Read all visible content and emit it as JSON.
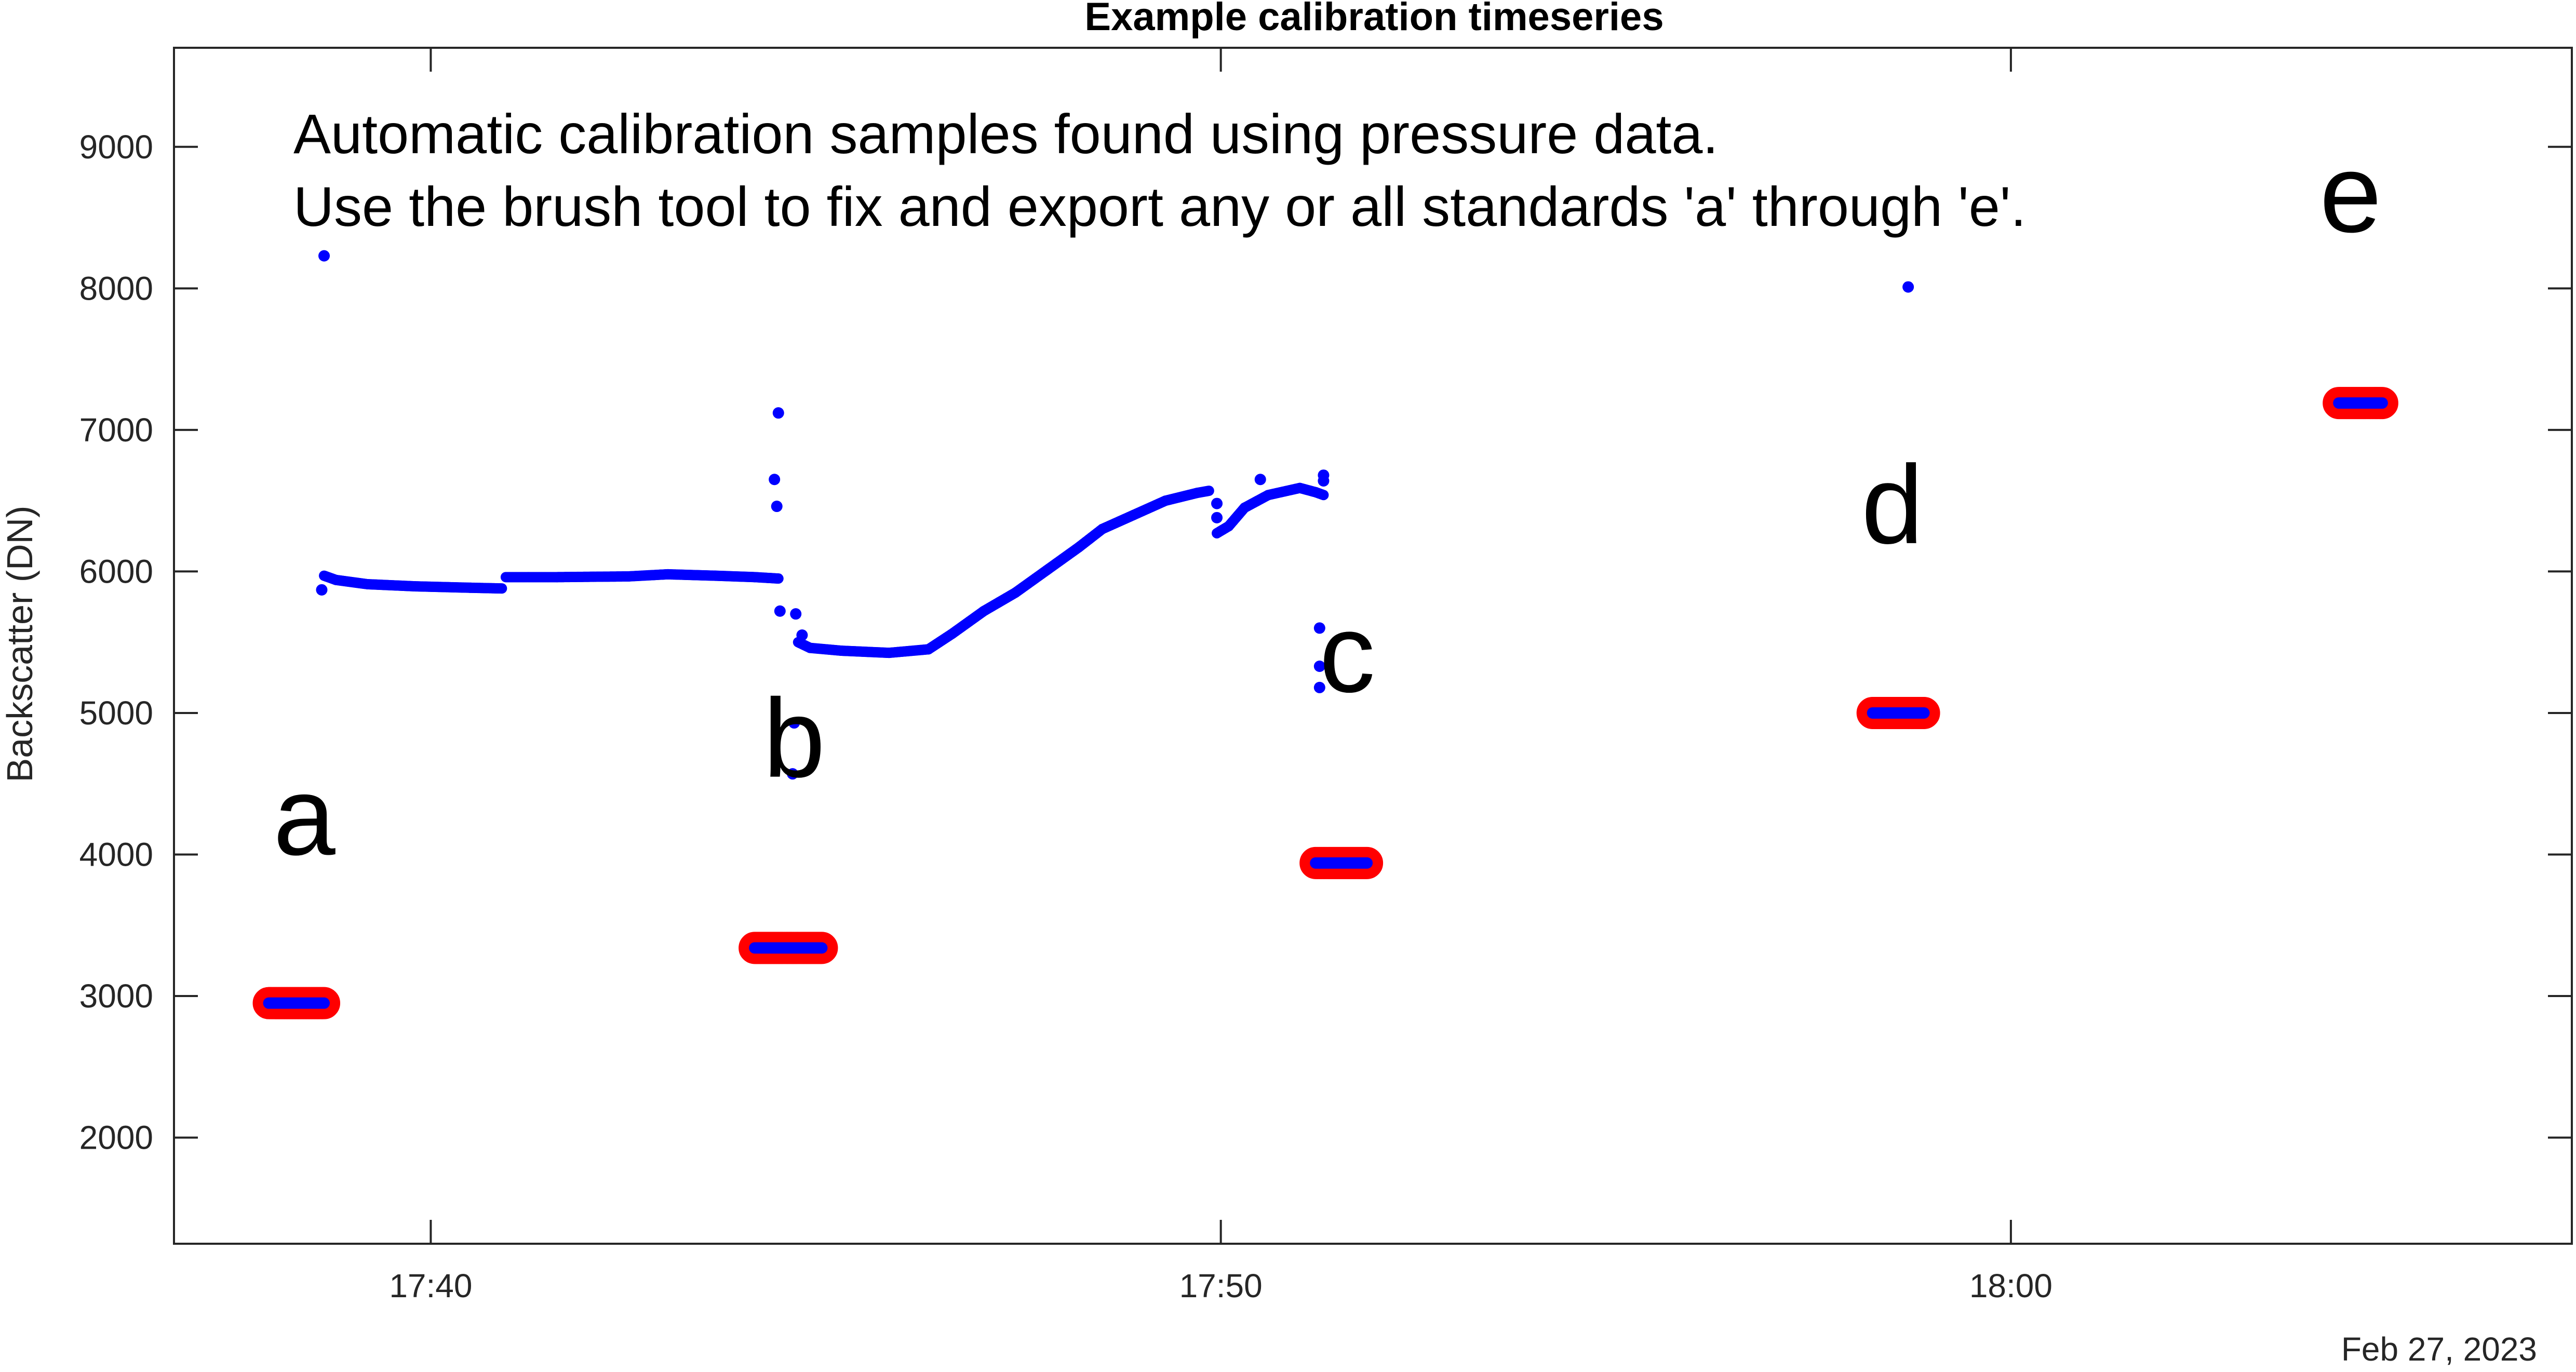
{
  "chart_data": {
    "type": "scatter",
    "title": "Example calibration timeseries",
    "xlabel": "",
    "ylabel": "Backscatter (DN)",
    "x_date_label": "Feb 27, 2023",
    "xlim": [
      "17:36:45",
      "17:67:05"
    ],
    "xlim_minutes_after_17": [
      36.75,
      67.1
    ],
    "ylim": [
      1250,
      9700
    ],
    "yticks": [
      2000,
      3000,
      4000,
      5000,
      6000,
      7000,
      8000,
      9000
    ],
    "ytick_labels": [
      "2000",
      "3000",
      "4000",
      "5000",
      "6000",
      "7000",
      "8000",
      "9000"
    ],
    "xticks_minutes_after_17": [
      40,
      50,
      60
    ],
    "xtick_labels": [
      "17:40",
      "17:50",
      "18:00"
    ],
    "grid": false,
    "annotations": {
      "note_lines": [
        "Automatic calibration samples found using pressure data.",
        "Use the brush tool to fix and export any or all standards 'a' through 'e'."
      ],
      "standard_labels": [
        {
          "text": "a",
          "minute": 38.4,
          "value": 4000
        },
        {
          "text": "b",
          "minute": 44.6,
          "value": 4550
        },
        {
          "text": "c",
          "minute": 51.6,
          "value": 5150
        },
        {
          "text": "d",
          "minute": 58.5,
          "value": 6200
        },
        {
          "text": "e",
          "minute": 64.3,
          "value": 8400
        }
      ]
    },
    "series": [
      {
        "role": "timeseries",
        "color": "#0000ff",
        "line_segments": [
          [
            [
              38.65,
              5970
            ],
            [
              38.8,
              5940
            ],
            [
              39.2,
              5910
            ],
            [
              39.8,
              5895
            ],
            [
              40.5,
              5885
            ],
            [
              40.9,
              5880
            ]
          ],
          [
            [
              40.95,
              5960
            ],
            [
              41.6,
              5960
            ],
            [
              42.5,
              5965
            ],
            [
              43.0,
              5980
            ],
            [
              43.6,
              5970
            ],
            [
              44.1,
              5960
            ],
            [
              44.4,
              5950
            ]
          ],
          [
            [
              44.65,
              5500
            ],
            [
              44.8,
              5460
            ],
            [
              45.2,
              5440
            ],
            [
              45.8,
              5425
            ],
            [
              46.3,
              5450
            ],
            [
              46.6,
              5560
            ],
            [
              47.0,
              5720
            ],
            [
              47.4,
              5850
            ],
            [
              47.8,
              6010
            ],
            [
              48.2,
              6170
            ],
            [
              48.5,
              6300
            ],
            [
              48.9,
              6400
            ],
            [
              49.3,
              6500
            ],
            [
              49.7,
              6555
            ],
            [
              49.85,
              6570
            ]
          ],
          [
            [
              49.95,
              6270
            ],
            [
              50.1,
              6320
            ],
            [
              50.3,
              6450
            ],
            [
              50.6,
              6540
            ],
            [
              51.0,
              6590
            ],
            [
              51.2,
              6560
            ],
            [
              51.3,
              6540
            ]
          ]
        ],
        "points": [
          [
            38.65,
            8230
          ],
          [
            38.62,
            5870
          ],
          [
            44.4,
            7120
          ],
          [
            44.35,
            6650
          ],
          [
            44.38,
            6460
          ],
          [
            44.42,
            5720
          ],
          [
            44.62,
            5700
          ],
          [
            44.6,
            4930
          ],
          [
            44.58,
            4570
          ],
          [
            44.7,
            5550
          ],
          [
            49.95,
            6480
          ],
          [
            49.95,
            6380
          ],
          [
            50.5,
            6650
          ],
          [
            51.3,
            6680
          ],
          [
            51.3,
            6640
          ],
          [
            51.25,
            5600
          ],
          [
            51.25,
            5330
          ],
          [
            51.25,
            5180
          ],
          [
            58.7,
            8010
          ]
        ]
      },
      {
        "role": "calibration-standard",
        "color": "#0000ff",
        "outline_color": "#ff0000",
        "clusters": [
          {
            "label": "a",
            "minute_start": 37.95,
            "minute_end": 38.65,
            "value": 2950
          },
          {
            "label": "b",
            "minute_start": 44.1,
            "minute_end": 44.95,
            "value": 3340
          },
          {
            "label": "c",
            "minute_start": 51.2,
            "minute_end": 51.85,
            "value": 3940
          },
          {
            "label": "d",
            "minute_start": 58.25,
            "minute_end": 58.9,
            "value": 5000
          },
          {
            "label": "e",
            "minute_start": 64.15,
            "minute_end": 64.7,
            "value": 7190
          }
        ]
      }
    ]
  }
}
